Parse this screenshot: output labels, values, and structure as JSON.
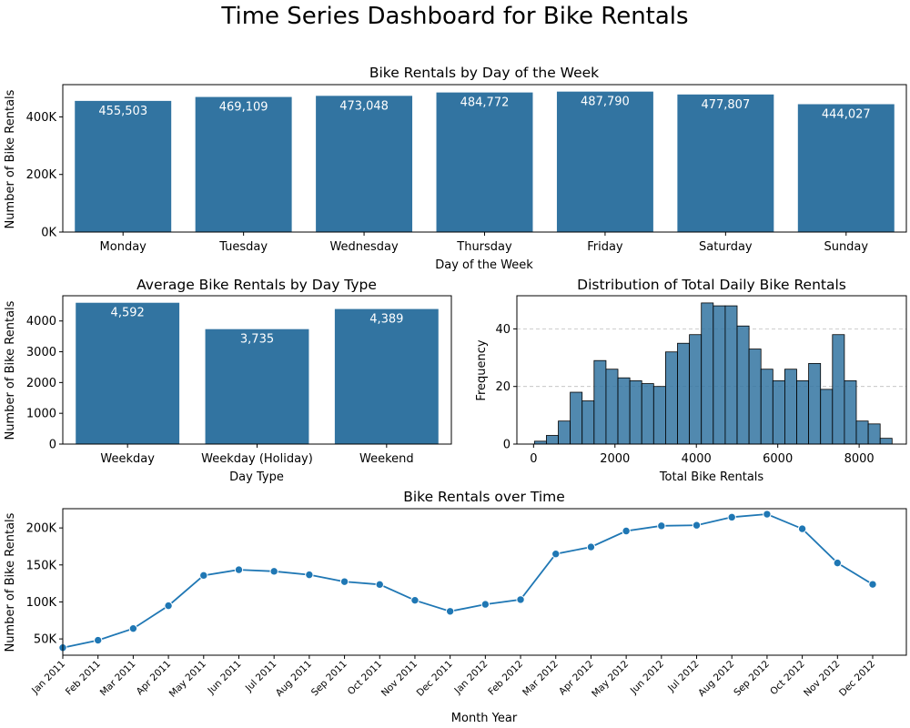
{
  "suptitle": "Time Series Dashboard for Bike Rentals",
  "chart_data": [
    {
      "type": "bar",
      "title": "Bike Rentals by Day of the Week",
      "xlabel": "Day of the Week",
      "ylabel": "Number of Bike Rentals",
      "categories": [
        "Monday",
        "Tuesday",
        "Wednesday",
        "Thursday",
        "Friday",
        "Saturday",
        "Sunday"
      ],
      "values": [
        455503,
        469109,
        473048,
        484772,
        487790,
        477807,
        444027
      ],
      "data_labels": [
        "455,503",
        "469,109",
        "473,048",
        "484,772",
        "487,790",
        "477,807",
        "444,027"
      ],
      "ylim": [
        0,
        512000
      ],
      "yticks": [
        0,
        200000,
        400000
      ],
      "ytick_labels": [
        "0K",
        "200K",
        "400K"
      ],
      "color": "#3274a1",
      "grid": false
    },
    {
      "type": "bar",
      "title": "Average Bike Rentals by Day Type",
      "xlabel": "Day Type",
      "ylabel": "Number of Bike Rentals",
      "categories": [
        "Weekday",
        "Weekday (Holiday)",
        "Weekend"
      ],
      "values": [
        4592,
        3735,
        4389
      ],
      "data_labels": [
        "4,592",
        "3,735",
        "4,389"
      ],
      "ylim": [
        0,
        4820
      ],
      "yticks": [
        0,
        1000,
        2000,
        3000,
        4000
      ],
      "ytick_labels": [
        "0",
        "1000",
        "2000",
        "3000",
        "4000"
      ],
      "color": "#3274a1",
      "grid": false
    },
    {
      "type": "histogram",
      "title": "Distribution of Total Daily Bike Rentals",
      "xlabel": "Total Bike Rentals",
      "ylabel": "Frequency",
      "bin_start": 22,
      "bin_width": 292.9,
      "counts": [
        1,
        3,
        8,
        18,
        15,
        29,
        26,
        23,
        22,
        21,
        20,
        32,
        35,
        38,
        49,
        48,
        48,
        41,
        33,
        26,
        22,
        26,
        22,
        28,
        19,
        38,
        22,
        8,
        7,
        2
      ],
      "xlim": [
        -410,
        9160
      ],
      "ylim": [
        0,
        51.5
      ],
      "xticks": [
        0,
        2000,
        4000,
        6000,
        8000
      ],
      "yticks": [
        0,
        20,
        40
      ],
      "color": "#3274a1",
      "grid": "y-dashed"
    },
    {
      "type": "line",
      "title": "Bike Rentals over Time",
      "xlabel": "Month Year",
      "ylabel": "Number of Bike Rentals",
      "categories": [
        "Jan 2011",
        "Feb 2011",
        "Mar 2011",
        "Apr 2011",
        "May 2011",
        "Jun 2011",
        "Jul 2011",
        "Aug 2011",
        "Sep 2011",
        "Oct 2011",
        "Nov 2011",
        "Dec 2011",
        "Jan 2012",
        "Feb 2012",
        "Mar 2012",
        "Apr 2012",
        "May 2012",
        "Jun 2012",
        "Jul 2012",
        "Aug 2012",
        "Sep 2012",
        "Oct 2012",
        "Nov 2012",
        "Dec 2012"
      ],
      "values": [
        38189,
        48215,
        64045,
        94870,
        135821,
        143512,
        141341,
        136691,
        127418,
        123511,
        102167,
        87323,
        96744,
        103137,
        164875,
        174224,
        195865,
        202830,
        203607,
        214503,
        218573,
        198841,
        152664,
        123713
      ],
      "ylim": [
        28000,
        226000
      ],
      "yticks": [
        50000,
        100000,
        150000,
        200000
      ],
      "ytick_labels": [
        "50K",
        "100K",
        "150K",
        "200K"
      ],
      "color": "#1f77b4",
      "marker": "circle",
      "grid": false
    }
  ]
}
